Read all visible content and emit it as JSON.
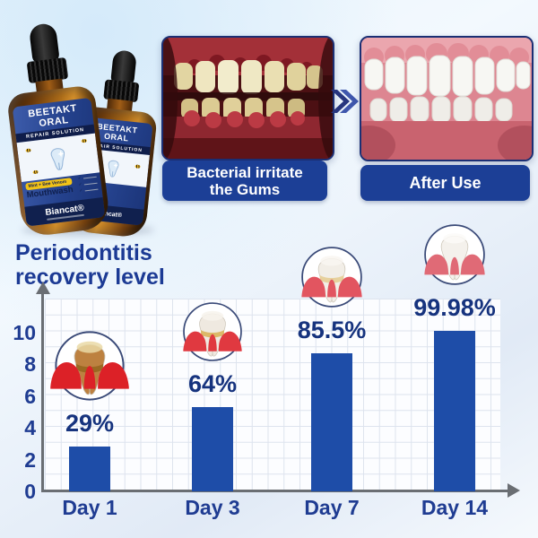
{
  "product": {
    "brand": "Biancat®",
    "name_line1": "BEETAKT",
    "name_line2": "ORAL",
    "subtitle": "REPAIR SOLUTION",
    "badge": "Mint + Bee Venom",
    "type_label": "Mouthwash",
    "label_tooth_icon": "tooth-sparkle-icon",
    "bee_icon": "bee-icon"
  },
  "comparison": {
    "before_label_line1": "Bacterial irritate",
    "before_label_line2": "the Gums",
    "after_label": "After Use",
    "arrow_icon": "double-chevron-right-icon",
    "before_photo": "inflamed-gums-teeth-photo",
    "after_photo": "healthy-teeth-photo"
  },
  "chart_data": {
    "type": "bar",
    "title_line1": "Periodontitis",
    "title_line2": "recovery level",
    "categories": [
      "Day 1",
      "Day 3",
      "Day 7",
      "Day 14"
    ],
    "values_percent": [
      29,
      64,
      85.5,
      99.98
    ],
    "percent_labels": [
      "29%",
      "64%",
      "85.5%",
      "99.98%"
    ],
    "bar_heights_axis_units": [
      2.8,
      5.3,
      8.7,
      10.1
    ],
    "yticks": [
      0,
      2,
      4,
      6,
      8,
      10
    ],
    "ylim": [
      0,
      12
    ],
    "grid": true,
    "legend": "none",
    "bar_color": "#1e4da8",
    "axis_color": "#6a6e73",
    "text_color": "#1c3a94",
    "stage_icons": [
      {
        "name": "decayed-tooth-inflamed-gums-icon",
        "tooth": "#bd8140",
        "crown": "#ead9a6",
        "tartar": "#96661f",
        "gum": "#dc2127"
      },
      {
        "name": "tartar-tooth-red-gums-icon",
        "tooth": "#efe9e0",
        "crown": "#f7f3ec",
        "tartar": "#d9b45c",
        "gum": "#e03940"
      },
      {
        "name": "recovering-tooth-gums-icon",
        "tooth": "#f2eee7",
        "crown": "#f9f6f1",
        "tartar": "#e5cd95",
        "gum": "#e25560"
      },
      {
        "name": "healthy-tooth-gums-icon",
        "tooth": "#f4f1ec",
        "crown": "#fbfaf8",
        "tartar": "none",
        "gum": "#e06a76"
      }
    ]
  },
  "colors": {
    "badge_blue": "#1c3f96",
    "label_navy": "#10204e",
    "label_blue": "#24418c",
    "pill_yellow": "#f2c316",
    "title_navy": "#1c3a94"
  }
}
